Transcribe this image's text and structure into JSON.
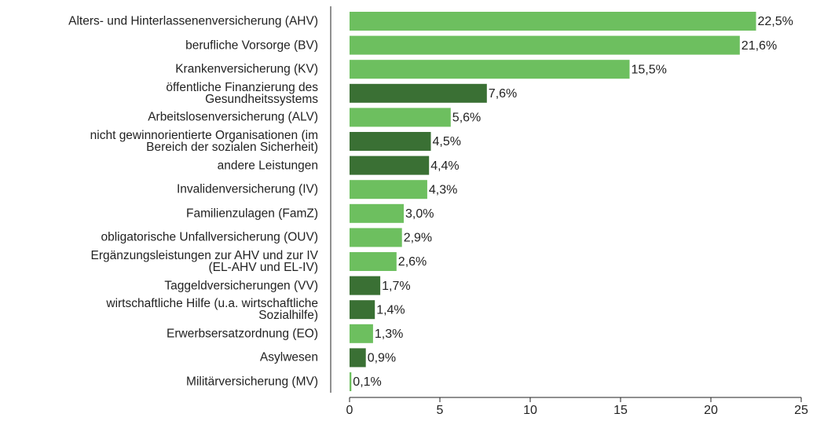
{
  "chart_data": {
    "type": "hbar",
    "categories": [
      "Alters- und Hinterlassenenversicherung (AHV)",
      "berufliche Vorsorge (BV)",
      "Krankenversicherung (KV)",
      "öffentliche Finanzierung des\nGesundheitssystems",
      "Arbeitslosenversicherung (ALV)",
      "nicht gewinnorientierte Organisationen (im\nBereich der sozialen Sicherheit)",
      "andere Leistungen",
      "Invalidenversicherung (IV)",
      "Familienzulagen (FamZ)",
      "obligatorische Unfallversicherung (OUV)",
      "Ergänzungsleistungen zur AHV und zur IV\n(EL-AHV und EL-IV)",
      "Taggeldversicherungen (VV)",
      "wirtschaftliche Hilfe (u.a. wirtschaftliche\nSozialhilfe)",
      "Erwerbsersatzordnung (EO)",
      "Asylwesen",
      "Militärversicherung (MV)"
    ],
    "values": [
      22.5,
      21.6,
      15.5,
      7.6,
      5.6,
      4.5,
      4.4,
      4.3,
      3.0,
      2.9,
      2.6,
      1.7,
      1.4,
      1.3,
      0.9,
      0.1
    ],
    "value_labels": [
      "22,5%",
      "21,6%",
      "15,5%",
      "7,6%",
      "5,6%",
      "4,5%",
      "4,4%",
      "4,3%",
      "3,0%",
      "2,9%",
      "2,6%",
      "1,7%",
      "1,4%",
      "1,3%",
      "0,9%",
      "0,1%"
    ],
    "colors": [
      "#6dbf5f",
      "#6dbf5f",
      "#6dbf5f",
      "#3a7034",
      "#6dbf5f",
      "#3a7034",
      "#3a7034",
      "#6dbf5f",
      "#6dbf5f",
      "#6dbf5f",
      "#6dbf5f",
      "#3a7034",
      "#3a7034",
      "#6dbf5f",
      "#3a7034",
      "#6dbf5f"
    ],
    "xlim": [
      0,
      25
    ],
    "xticks": [
      0,
      5,
      10,
      15,
      20,
      25
    ]
  }
}
